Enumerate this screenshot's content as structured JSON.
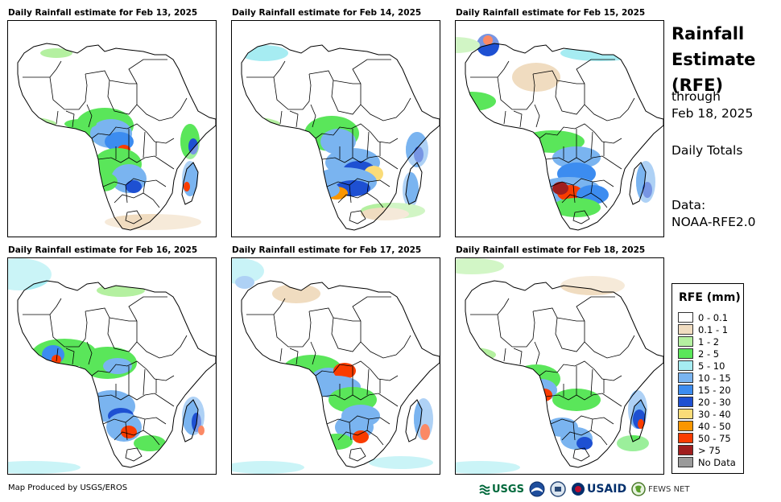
{
  "panels": [
    {
      "title": "Daily Rainfall estimate for Feb 13, 2025"
    },
    {
      "title": "Daily Rainfall estimate for Feb 14, 2025"
    },
    {
      "title": "Daily Rainfall estimate for Feb 15, 2025"
    },
    {
      "title": "Daily Rainfall estimate for Feb 16, 2025"
    },
    {
      "title": "Daily Rainfall estimate for Feb 17, 2025"
    },
    {
      "title": "Daily Rainfall estimate for Feb 18, 2025"
    }
  ],
  "side": {
    "title_line1": "Rainfall",
    "title_line2": "Estimate",
    "title_line3": "(RFE)",
    "through": "through",
    "date": "Feb 18, 2025",
    "totals": "Daily Totals",
    "data_label": "Data:",
    "data_source": "NOAA-RFE2.0"
  },
  "legend": {
    "title": "RFE (mm)",
    "items": [
      {
        "label": "0 - 0.1",
        "color": "#ffffff"
      },
      {
        "label": "0.1 - 1",
        "color": "#f0dcc0"
      },
      {
        "label": "1 - 2",
        "color": "#b4f0a0"
      },
      {
        "label": "2 - 5",
        "color": "#5ae65a"
      },
      {
        "label": "5 - 10",
        "color": "#a6ecf2"
      },
      {
        "label": "10 - 15",
        "color": "#7ab4f0"
      },
      {
        "label": "15 - 20",
        "color": "#3c8cf0"
      },
      {
        "label": "20 - 30",
        "color": "#1e50d2"
      },
      {
        "label": "30 - 40",
        "color": "#fadc78"
      },
      {
        "label": "40 - 50",
        "color": "#fa9600"
      },
      {
        "label": "50 - 75",
        "color": "#fa3c00"
      },
      {
        "label": "> 75",
        "color": "#a01e1e"
      },
      {
        "label": "No Data",
        "color": "#9a9a9a"
      }
    ]
  },
  "footer": {
    "credit": "Map Produced by USGS/EROS"
  },
  "logos": {
    "usgs": "USGS",
    "usaid": "USAID",
    "fews": "FEWS NET"
  }
}
